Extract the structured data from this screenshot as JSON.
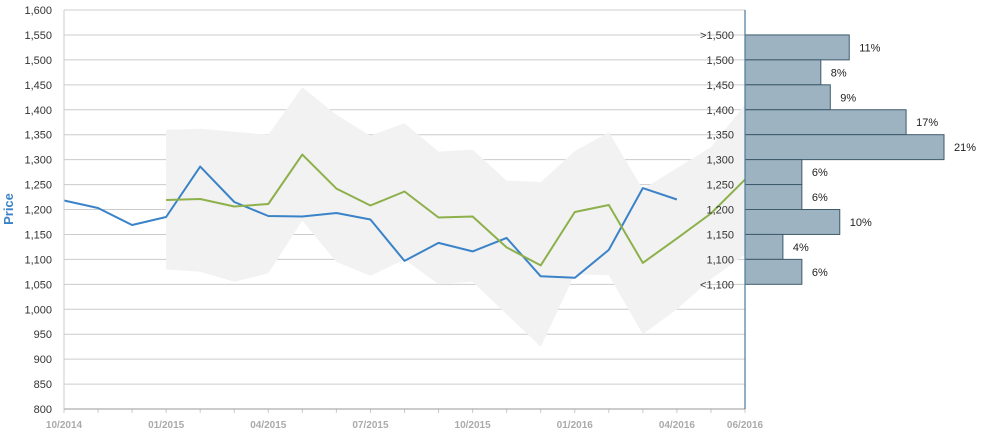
{
  "chart_data": {
    "type": "line",
    "ylabel": "Price",
    "ylim": [
      800,
      1600
    ],
    "y_ticks": [
      "800",
      "850",
      "900",
      "950",
      "1,000",
      "1,050",
      "1,100",
      "1,150",
      "1,200",
      "1,250",
      "1,300",
      "1,350",
      "1,400",
      "1,450",
      "1,500",
      "1,550",
      "1,600"
    ],
    "x_ticks": [
      "10/2014",
      "01/2015",
      "04/2015",
      "07/2015",
      "10/2015",
      "01/2016",
      "04/2016",
      "06/2016"
    ],
    "x_months": [
      "10/2014",
      "11/2014",
      "12/2014",
      "01/2015",
      "02/2015",
      "03/2015",
      "04/2015",
      "05/2015",
      "06/2015",
      "07/2015",
      "08/2015",
      "09/2015",
      "10/2015",
      "11/2015",
      "12/2015",
      "01/2016",
      "02/2016",
      "03/2016",
      "04/2016",
      "05/2016",
      "06/2016"
    ],
    "grid": true,
    "colors": {
      "series1": "#3b83c8",
      "series2": "#8db04a",
      "band": "#f2f2f2",
      "bar_fill": "#9db3c2",
      "bar_stroke": "#3e5a6b",
      "axis": "#4d7a9e",
      "ylabel": "#3b83c8"
    },
    "series": [
      {
        "values": [
          1218,
          1203,
          1169,
          1185,
          1286,
          1215,
          1187,
          1186,
          1193,
          1180,
          1097,
          1133,
          1116,
          1143,
          1066,
          1063,
          1119,
          1243,
          1220,
          null,
          null
        ]
      },
      {
        "values": [
          null,
          null,
          null,
          1219,
          1221,
          1206,
          1211,
          1310,
          1242,
          1208,
          1236,
          1184,
          1186,
          1124,
          1088,
          1195,
          1209,
          1093,
          1142,
          1192,
          1260
        ]
      }
    ],
    "band": {
      "upper": [
        null,
        null,
        null,
        1360,
        1362,
        1356,
        1350,
        1445,
        1390,
        1348,
        1373,
        1316,
        1320,
        1258,
        1255,
        1317,
        1355,
        1241,
        1283,
        1325,
        1410
      ],
      "lower": [
        null,
        null,
        null,
        1080,
        1075,
        1055,
        1072,
        1178,
        1095,
        1067,
        1100,
        1050,
        1055,
        990,
        925,
        1070,
        1068,
        950,
        1000,
        1060,
        1110
      ]
    },
    "histogram": {
      "labels": [
        ">1,500",
        "1,500",
        "1,450",
        "1,400",
        "1,350",
        "1,300",
        "1,250",
        "1,200",
        "1,150",
        "1,100",
        "<1,100"
      ],
      "bins": [
        {
          "center": 1525,
          "percent": 11,
          "label": "11%"
        },
        {
          "center": 1475,
          "percent": 8,
          "label": "8%"
        },
        {
          "center": 1425,
          "percent": 9,
          "label": "9%"
        },
        {
          "center": 1375,
          "percent": 17,
          "label": "17%"
        },
        {
          "center": 1325,
          "percent": 21,
          "label": "21%"
        },
        {
          "center": 1275,
          "percent": 6,
          "label": "6%"
        },
        {
          "center": 1225,
          "percent": 6,
          "label": "6%"
        },
        {
          "center": 1175,
          "percent": 10,
          "label": "10%"
        },
        {
          "center": 1125,
          "percent": 4,
          "label": "4%"
        },
        {
          "center": 1075,
          "percent": 6,
          "label": "6%"
        }
      ]
    }
  }
}
